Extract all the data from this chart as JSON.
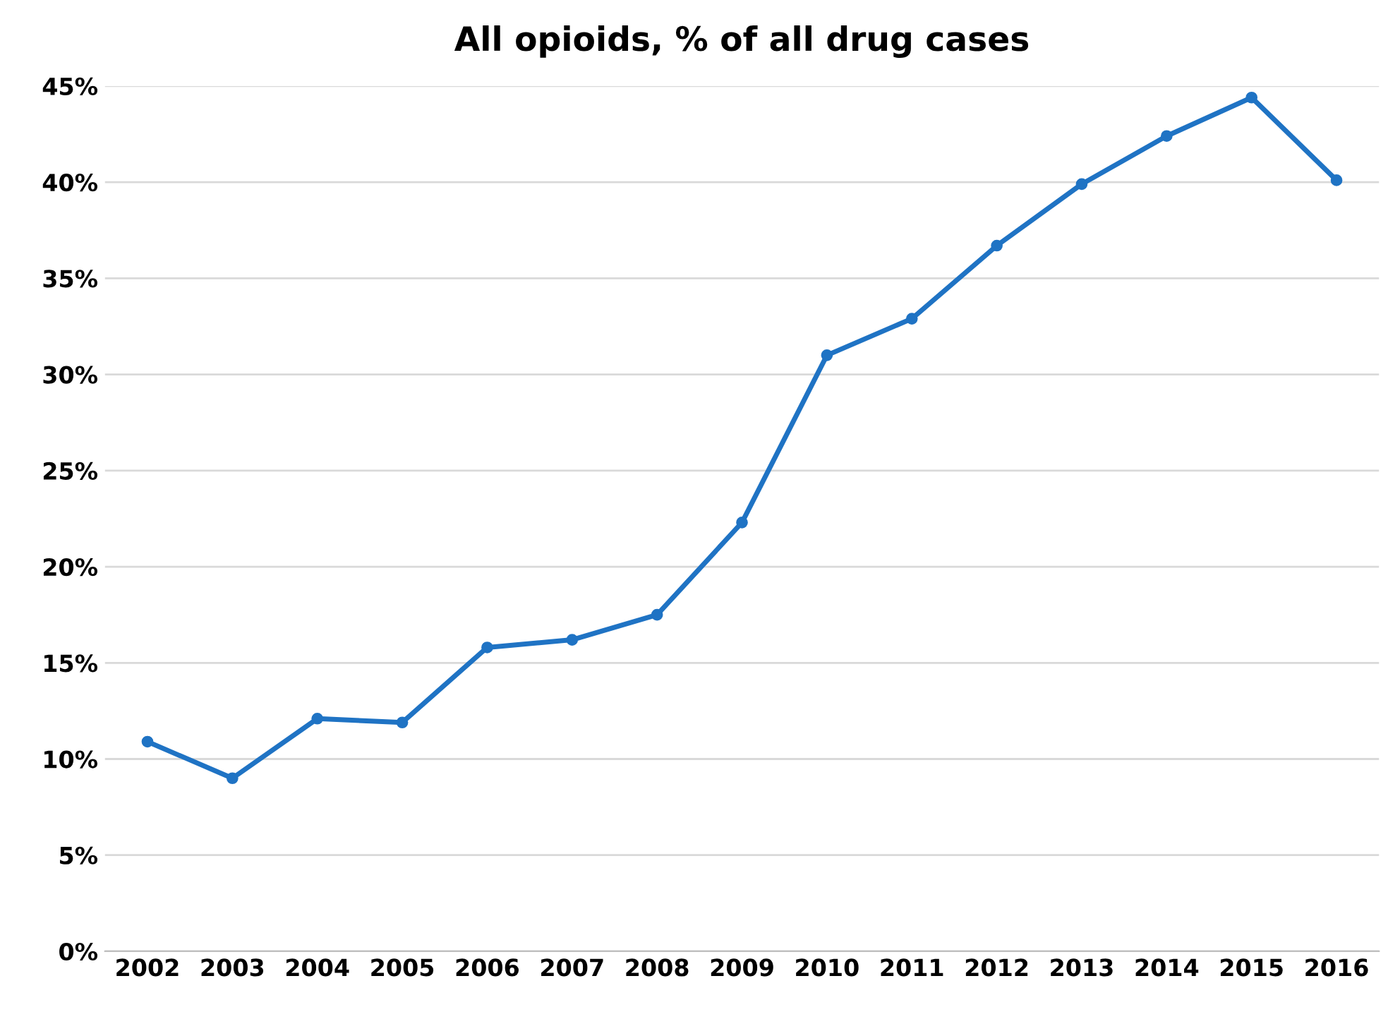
{
  "chart_data": {
    "type": "line",
    "title": "All opioids, % of all drug cases",
    "categories": [
      "2002",
      "2003",
      "2004",
      "2005",
      "2006",
      "2007",
      "2008",
      "2009",
      "2010",
      "2011",
      "2012",
      "2013",
      "2014",
      "2015",
      "2016"
    ],
    "series": [
      {
        "color": "#1f73c4",
        "values": [
          10.9,
          9.0,
          12.1,
          11.9,
          15.8,
          16.2,
          17.5,
          22.3,
          31.0,
          32.9,
          36.7,
          39.9,
          42.4,
          44.4,
          40.1
        ]
      }
    ],
    "ylim": [
      0,
      45
    ],
    "yticks": [
      {
        "value": 0,
        "label": "0%"
      },
      {
        "value": 5,
        "label": "5%"
      },
      {
        "value": 10,
        "label": "10%"
      },
      {
        "value": 15,
        "label": "15%"
      },
      {
        "value": 20,
        "label": "20%"
      },
      {
        "value": 25,
        "label": "25%"
      },
      {
        "value": 30,
        "label": "30%"
      },
      {
        "value": 35,
        "label": "35%"
      },
      {
        "value": 40,
        "label": "40%"
      },
      {
        "value": 45,
        "label": "45%"
      }
    ],
    "grid": "y",
    "marker": "circle",
    "line_style": "solid",
    "legend": false
  }
}
